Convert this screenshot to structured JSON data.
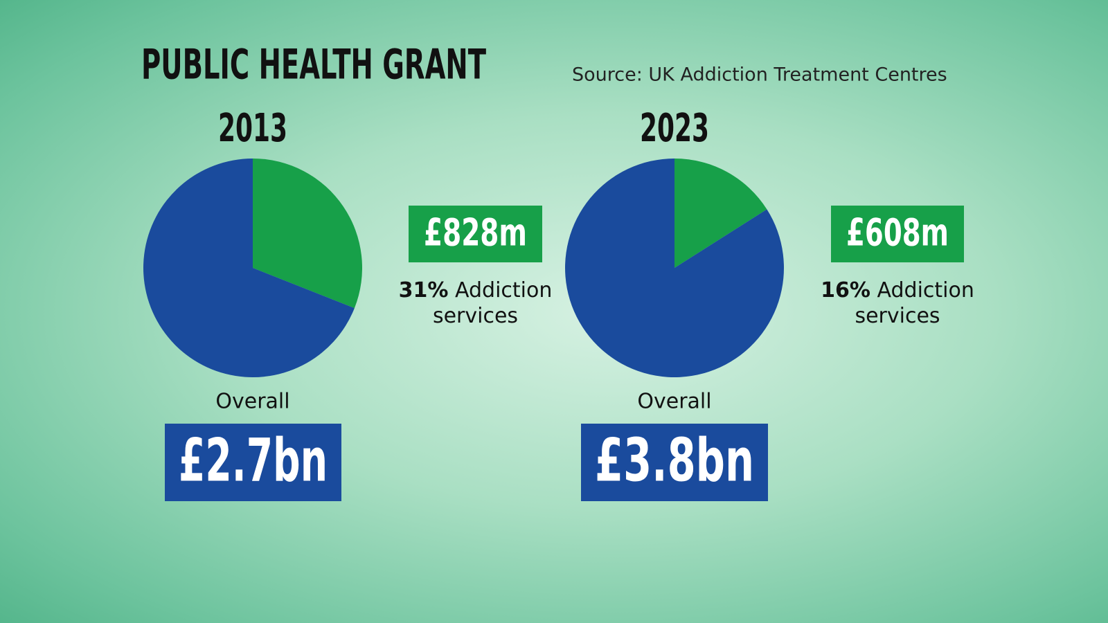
{
  "title": "PUBLIC HEALTH GRANT",
  "source": "Source: UK Addiction Treatment Centres",
  "chart_data": [
    {
      "type": "pie",
      "title": "2013",
      "categories": [
        "Addiction services",
        null
      ],
      "values": [
        31,
        69
      ],
      "value_labels": [
        "31%",
        null
      ],
      "colors": [
        "#17a049",
        "#1a4b9d"
      ],
      "segment_amount": "£828m",
      "total_label": "Overall",
      "total_amount": "£2.7bn"
    },
    {
      "type": "pie",
      "title": "2023",
      "categories": [
        "Addiction services",
        null
      ],
      "values": [
        16,
        84
      ],
      "value_labels": [
        "16%",
        null
      ],
      "colors": [
        "#17a049",
        "#1a4b9d"
      ],
      "segment_amount": "£608m",
      "total_label": "Overall",
      "total_amount": "£3.8bn"
    }
  ]
}
